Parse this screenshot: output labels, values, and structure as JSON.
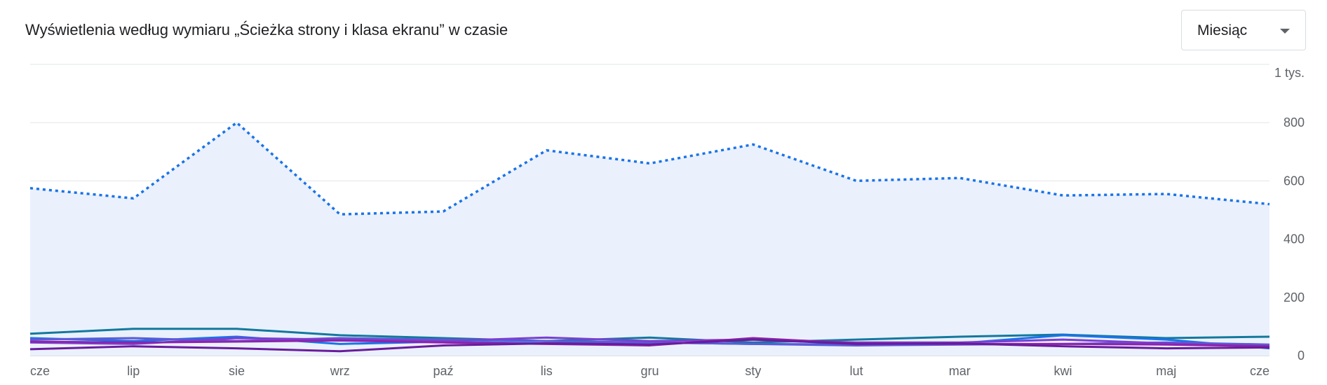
{
  "header": {
    "title": "Wyświetlenia według wymiaru „Ścieżka strony i klasa ekranu” w czasie"
  },
  "period_selector": {
    "value": "Miesiąc"
  },
  "chart_data": {
    "type": "line",
    "title": "Wyświetlenia według wymiaru „Ścieżka strony i klasa ekranu” w czasie",
    "xlabel": "",
    "ylabel": "",
    "categories": [
      "cze",
      "lip",
      "sie",
      "wrz",
      "paź",
      "lis",
      "gru",
      "sty",
      "lut",
      "mar",
      "kwi",
      "maj",
      "cze"
    ],
    "y_ticks": [
      {
        "value": 0,
        "label": "0"
      },
      {
        "value": 200,
        "label": "200"
      },
      {
        "value": 400,
        "label": "400"
      },
      {
        "value": 600,
        "label": "600"
      },
      {
        "value": 800,
        "label": "800"
      },
      {
        "value": 1000,
        "label": "1 tys."
      }
    ],
    "ylim": [
      0,
      1000
    ],
    "y_axis_side": "right",
    "grid": true,
    "legend": "none",
    "series": [
      {
        "values": [
          575,
          540,
          800,
          485,
          495,
          705,
          660,
          725,
          600,
          610,
          550,
          555,
          520
        ],
        "color": "#1a73e8",
        "style": "dotted",
        "fill": "#eaf1fd"
      },
      {
        "values": [
          75,
          92,
          92,
          70,
          60,
          50,
          62,
          45,
          55,
          65,
          72,
          60,
          65
        ],
        "color": "#12799c",
        "style": "solid"
      },
      {
        "values": [
          60,
          50,
          65,
          40,
          48,
          42,
          45,
          40,
          38,
          42,
          70,
          55,
          25
        ],
        "color": "#1a73e8",
        "style": "solid"
      },
      {
        "values": [
          55,
          60,
          50,
          60,
          55,
          50,
          45,
          40,
          35,
          38,
          40,
          45,
          38
        ],
        "color": "#5b5bd6",
        "style": "solid"
      },
      {
        "values": [
          45,
          40,
          60,
          55,
          50,
          62,
          50,
          55,
          45,
          45,
          55,
          42,
          30
        ],
        "color": "#7b3fd1",
        "style": "solid"
      },
      {
        "values": [
          48,
          45,
          48,
          52,
          45,
          40,
          35,
          60,
          42,
          40,
          40,
          38,
          32
        ],
        "color": "#8e24aa",
        "style": "solid"
      },
      {
        "values": [
          22,
          32,
          25,
          15,
          35,
          42,
          38,
          55,
          40,
          42,
          32,
          25,
          28
        ],
        "color": "#6a1b9a",
        "style": "solid"
      }
    ]
  }
}
